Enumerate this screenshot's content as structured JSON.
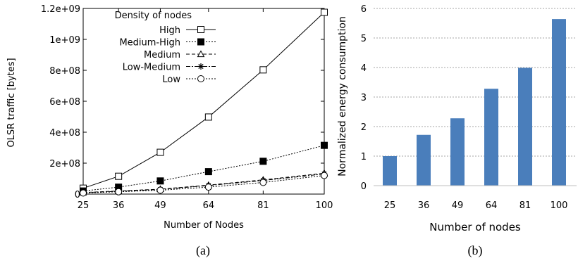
{
  "chart_data": [
    {
      "type": "line",
      "panel_label": "(a)",
      "xlabel": "Number of Nodes",
      "ylabel": "OLSR traffic [bytes]",
      "x": [
        25,
        36,
        49,
        64,
        81,
        100
      ],
      "x_tick_labels": [
        "25",
        "36",
        "49",
        "64",
        "81",
        "100"
      ],
      "ylim": [
        0,
        1200000000
      ],
      "y_ticks": [
        0,
        200000000,
        400000000,
        600000000,
        800000000,
        1000000000,
        1200000000
      ],
      "y_tick_labels": [
        "0",
        "2e+08",
        "4e+08",
        "6e+08",
        "8e+08",
        "1e+09",
        "1.2e+09"
      ],
      "grid": false,
      "legend": {
        "title": "Density of nodes",
        "placement": "top-left"
      },
      "series": [
        {
          "name": "High",
          "marker": "open-square",
          "line": "solid",
          "values": [
            38000000,
            115000000,
            270000000,
            498000000,
            803000000,
            1175000000
          ]
        },
        {
          "name": "Medium-High",
          "marker": "filled-square",
          "line": "dotted",
          "values": [
            20000000,
            45000000,
            85000000,
            145000000,
            212000000,
            315000000
          ]
        },
        {
          "name": "Medium",
          "marker": "open-triangle",
          "line": "dashed",
          "values": [
            10000000,
            20000000,
            32000000,
            58000000,
            92000000,
            135000000
          ]
        },
        {
          "name": "Low-Medium",
          "marker": "star",
          "line": "dash-dot",
          "values": [
            9000000,
            18000000,
            30000000,
            55000000,
            88000000,
            130000000
          ]
        },
        {
          "name": "Low",
          "marker": "open-circle",
          "line": "dotted",
          "values": [
            7000000,
            15000000,
            25000000,
            45000000,
            75000000,
            120000000
          ]
        }
      ]
    },
    {
      "type": "bar",
      "panel_label": "(b)",
      "xlabel": "Number of nodes",
      "ylabel": "Normalized energy consumption",
      "categories": [
        "25",
        "36",
        "49",
        "64",
        "81",
        "100"
      ],
      "values": [
        1.0,
        1.72,
        2.28,
        3.28,
        3.99,
        5.64
      ],
      "ylim": [
        0,
        6
      ],
      "y_tick_labels": [
        "0",
        "1",
        "2",
        "3",
        "4",
        "5",
        "6"
      ],
      "grid": true,
      "bar_color": "#4a7ebb"
    }
  ]
}
